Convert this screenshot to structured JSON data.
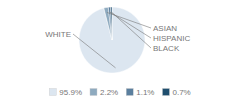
{
  "chart_data": {
    "type": "pie",
    "categories": [
      "WHITE",
      "ASIAN",
      "HISPANIC",
      "BLACK"
    ],
    "values": [
      95.9,
      2.2,
      1.1,
      0.7
    ],
    "value_labels": [
      "95.9%",
      "2.2%",
      "1.1%",
      "0.7%"
    ],
    "colors": [
      "#dce6f0",
      "#8eaabf",
      "#5b7f9e",
      "#1f4e6e"
    ],
    "legend": "bottom"
  }
}
